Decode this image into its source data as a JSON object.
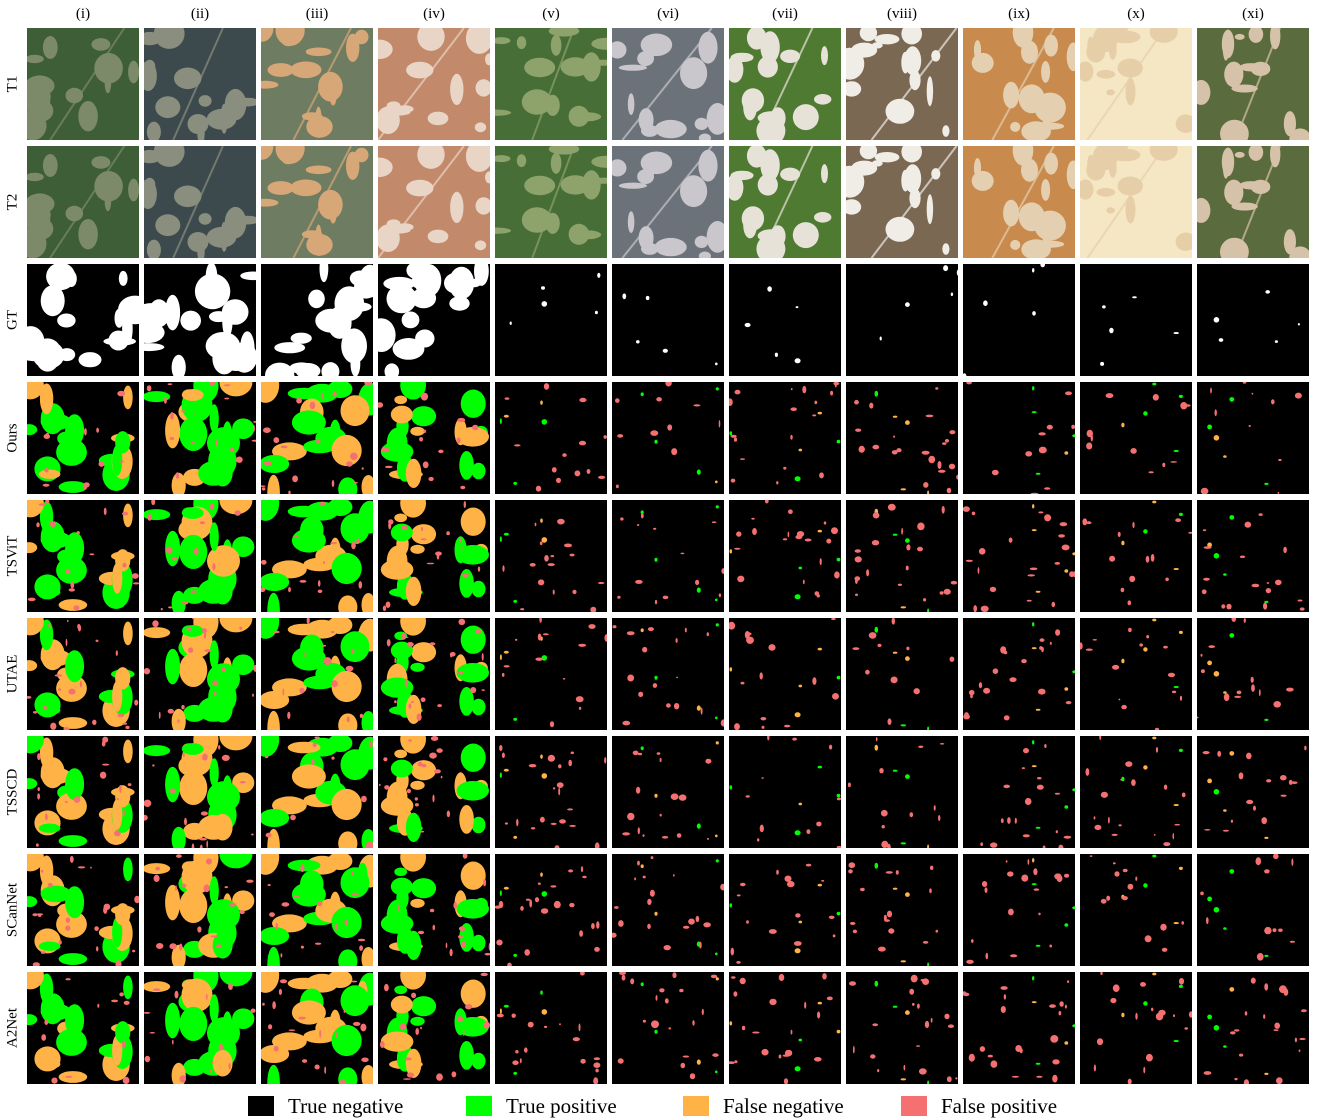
{
  "columns": [
    "(i)",
    "(ii)",
    "(iii)",
    "(iv)",
    "(v)",
    "(vi)",
    "(vii)",
    "(viii)",
    "(ix)",
    "(x)",
    "(xi)"
  ],
  "rows": [
    {
      "label": "T1",
      "kind": "image"
    },
    {
      "label": "T2",
      "kind": "image"
    },
    {
      "label": "GT",
      "kind": "gt"
    },
    {
      "label": "Ours",
      "kind": "pred"
    },
    {
      "label": "TSViT",
      "kind": "pred"
    },
    {
      "label": "UTAE",
      "kind": "pred"
    },
    {
      "label": "TSSCD",
      "kind": "pred"
    },
    {
      "label": "SCanNet",
      "kind": "pred"
    },
    {
      "label": "A2Net",
      "kind": "pred"
    }
  ],
  "legend": [
    {
      "label": "True negative",
      "color": "#000000"
    },
    {
      "label": "True positive",
      "color": "#00ff00"
    },
    {
      "label": "False negative",
      "color": "#ffb347"
    },
    {
      "label": "False positive",
      "color": "#f57070"
    }
  ],
  "scene_colors": [
    {
      "base": "#3d5e36",
      "accent": "#7d8a6a"
    },
    {
      "base": "#3c4a4e",
      "accent": "#8a8e7e"
    },
    {
      "base": "#6e7d62",
      "accent": "#d8a778"
    },
    {
      "base": "#c2896a",
      "accent": "#e8d5c6"
    },
    {
      "base": "#466e36",
      "accent": "#8ea26c"
    },
    {
      "base": "#6c727a",
      "accent": "#c9c6cc"
    },
    {
      "base": "#4f7a32",
      "accent": "#e6e2d8"
    },
    {
      "base": "#7a6852",
      "accent": "#f0ece6"
    },
    {
      "base": "#c98a4e",
      "accent": "#e4d0b0"
    },
    {
      "base": "#f5e7c4",
      "accent": "#e6cfa8"
    },
    {
      "base": "#5a6b3e",
      "accent": "#d6c2a8"
    }
  ]
}
